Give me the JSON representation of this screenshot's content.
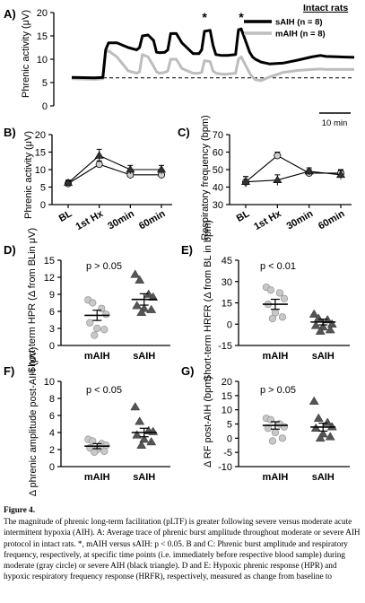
{
  "figure": {
    "legend_title": "Intact rats",
    "legend_items": [
      "sAIH (n = 8)",
      "mAIH (n = 8)"
    ],
    "scale_bar_label": "10 min",
    "asterisk": "*"
  },
  "colors": {
    "severe": "#000000",
    "moderate": "#bdbdbd",
    "points_moderate": "#c8c8c8",
    "points_severe": "#555555"
  },
  "caption": {
    "title": "Figure 4.",
    "body": "The magnitude of phrenic long-term facilitation (pLTF) is greater following severe versus moderate acute intermittent hypoxia (AIH). A: Average trace of phrenic burst amplitude throughout moderate or severe AIH protocol in intact rats. *, mAIH versus sAIH: p < 0.05. B and C: Phrenic burst amplitude and respiratory frequency, respectively, at specific time points (i.e. immediately before respective blood sample) during moderate (gray circle) or severe AIH (black triangle). D and E: Hypoxic phrenic response (HPR) and hypoxic respiratory frequency response (HRFR), respectively, measured as change from baseline to"
  },
  "chart_data": [
    {
      "panel": "A)",
      "type": "line",
      "ylabel": "Phrenic activity (μV)",
      "ylim": [
        0,
        20
      ],
      "yticks": [
        0,
        5,
        10,
        15,
        20
      ],
      "xlim": [
        0,
        100
      ],
      "baseline": 6,
      "asterisk_x": [
        47,
        60
      ],
      "series": [
        {
          "name": "sAIH (n = 8)",
          "x": [
            0,
            8,
            11,
            12,
            13,
            16,
            20,
            23,
            24,
            25,
            27,
            29,
            30,
            31,
            33,
            34,
            35,
            37,
            39,
            43,
            45,
            46,
            47,
            49,
            50,
            51,
            53,
            55,
            58,
            59,
            60,
            63,
            64,
            65,
            67,
            70,
            75,
            80,
            85,
            88,
            90,
            95,
            100
          ],
          "y": [
            6.1,
            6.0,
            6.1,
            12,
            13.5,
            13.5,
            12.5,
            12,
            12.5,
            15,
            15.2,
            14,
            11.5,
            11.4,
            11.5,
            12,
            15.5,
            15.5,
            13.5,
            11.2,
            11.2,
            12,
            16,
            16.2,
            13,
            11,
            10.8,
            10.8,
            11,
            16.3,
            16.5,
            11.5,
            10.5,
            10,
            9.4,
            9,
            9.2,
            9.8,
            10.5,
            10.8,
            10.6,
            10.5,
            10.4
          ]
        },
        {
          "name": "mAIH (n = 8)",
          "x": [
            0,
            8,
            11,
            12,
            13,
            16,
            20,
            23,
            24,
            25,
            27,
            29,
            30,
            31,
            33,
            34,
            35,
            37,
            39,
            43,
            45,
            46,
            47,
            49,
            50,
            51,
            53,
            55,
            58,
            59,
            60,
            63,
            64,
            65,
            67,
            70,
            75,
            80,
            85,
            88,
            90,
            95,
            100
          ],
          "y": [
            5.8,
            5.7,
            5.8,
            11.5,
            11.8,
            10.5,
            7.5,
            7,
            7.3,
            11,
            10.5,
            8.5,
            7.3,
            7,
            7.2,
            7.5,
            10,
            10,
            8,
            7,
            7,
            7.2,
            9.7,
            9.5,
            7.5,
            7,
            6.8,
            6.8,
            7,
            10,
            10.5,
            7,
            6.2,
            5.6,
            5.4,
            6.2,
            7.2,
            7.6,
            7.8,
            7.9,
            7.8,
            7.8,
            7.8
          ]
        }
      ]
    },
    {
      "panel": "B)",
      "type": "line",
      "ylabel": "Phrenic activity (μV)",
      "ylim": [
        0,
        20
      ],
      "yticks": [
        0,
        5,
        10,
        15,
        20
      ],
      "categories": [
        "BL",
        "1st Hx",
        "30min",
        "60min"
      ],
      "series": [
        {
          "name": "moderate",
          "values": [
            6,
            11.5,
            8.5,
            8.5
          ],
          "err": [
            0.8,
            1,
            1,
            1
          ]
        },
        {
          "name": "severe",
          "values": [
            6.2,
            14,
            10,
            10
          ],
          "err": [
            0.8,
            1.8,
            1.2,
            1.2
          ]
        }
      ]
    },
    {
      "panel": "C)",
      "type": "line",
      "ylabel": "Respiratory frequency (bpm)",
      "ylim": [
        30,
        70
      ],
      "yticks": [
        30,
        40,
        50,
        60,
        70
      ],
      "categories": [
        "BL",
        "1st Hx",
        "30min",
        "60min"
      ],
      "series": [
        {
          "name": "moderate",
          "values": [
            43,
            58,
            48,
            48
          ],
          "err": [
            3,
            2,
            2,
            2
          ]
        },
        {
          "name": "severe",
          "values": [
            43,
            44,
            49,
            47
          ],
          "err": [
            3,
            3,
            2,
            2.5
          ]
        }
      ]
    },
    {
      "panel": "D)",
      "type": "scatter",
      "ylabel": "Short-term HPR (Δ from BLin μV)",
      "ylim": [
        0,
        15
      ],
      "yticks": [
        0,
        3,
        6,
        9,
        12,
        15
      ],
      "annotation": "p > 0.05",
      "categories": [
        "mAIH",
        "sAIH"
      ],
      "means": [
        5.3,
        8.1
      ],
      "sem": [
        0.9,
        1.0
      ],
      "points": [
        [
          8,
          7.5,
          6.5,
          5.5,
          4,
          3,
          2.8,
          1.8
        ],
        [
          12.5,
          11.5,
          9,
          8.5,
          7,
          6.5,
          6.3,
          5.8
        ]
      ]
    },
    {
      "panel": "E)",
      "type": "scatter",
      "ylabel": "Short-term HRFR (Δ from BL in bpm)",
      "ylim": [
        -15,
        45
      ],
      "yticks": [
        -15,
        0,
        15,
        30,
        45
      ],
      "annotation": "p < 0.01",
      "categories": [
        "mAIH",
        "sAIH"
      ],
      "means": [
        14,
        1.5
      ],
      "sem": [
        3.5,
        2
      ],
      "points": [
        [
          26,
          24,
          22,
          18,
          14,
          8,
          5,
          4
        ],
        [
          7,
          4,
          3,
          0,
          -1,
          -2,
          -4,
          -5
        ]
      ]
    },
    {
      "panel": "F)",
      "type": "scatter",
      "ylabel": "Δ phrenic amplitude post-AIH (μV)",
      "ylim": [
        0,
        10
      ],
      "yticks": [
        0,
        2,
        4,
        6,
        8,
        10
      ],
      "annotation": "p < 0.05",
      "categories": [
        "mAIH",
        "sAIH"
      ],
      "means": [
        2.4,
        4.0
      ],
      "sem": [
        0.3,
        0.5
      ],
      "points": [
        [
          3.2,
          3.0,
          2.7,
          2.5,
          2.2,
          2.0,
          1.8,
          1.7
        ],
        [
          7,
          5.3,
          4.2,
          4.1,
          3.7,
          3.2,
          2.9,
          2.5
        ]
      ]
    },
    {
      "panel": "G)",
      "type": "scatter",
      "ylabel": "Δ RF post-AIH (bpm)",
      "ylim": [
        -10,
        20
      ],
      "yticks": [
        -10,
        -5,
        0,
        5,
        10,
        15,
        20
      ],
      "annotation": "p > 0.05",
      "categories": [
        "mAIH",
        "sAIH"
      ],
      "means": [
        4.5,
        3.9
      ],
      "sem": [
        1.3,
        1.4
      ],
      "points": [
        [
          7,
          6.5,
          5,
          4,
          3.5,
          2,
          0,
          -1
        ],
        [
          13,
          7,
          5.5,
          4,
          3.5,
          1.5,
          0.5,
          0
        ]
      ]
    }
  ]
}
